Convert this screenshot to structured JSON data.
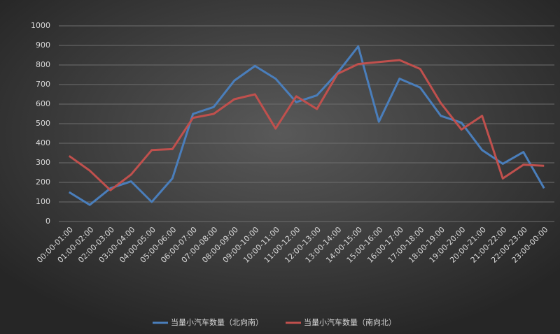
{
  "chart_data": {
    "type": "line",
    "categories": [
      "00:00-01:00",
      "01:00-02:00",
      "02:00-03:00",
      "03:00-04:00",
      "04:00-05:00",
      "05:00-06:00",
      "06:00-07:00",
      "07:00-08:00",
      "08:00-09:00",
      "09:00-10:00",
      "10:00-11:00",
      "11:00-12:00",
      "12:00-13:00",
      "13:00-14:00",
      "14:00-15:00",
      "15:00-16:00",
      "16:00-17:00",
      "17:00-18:00",
      "18:00-19:00",
      "19:00-20:00",
      "20:00-21:00",
      "21:00-22:00",
      "22:00-23:00",
      "23:00-00:00"
    ],
    "series": [
      {
        "name": "当量小汽车数量（北向南）",
        "color": "#4a7ebb",
        "values": [
          150,
          85,
          170,
          205,
          100,
          220,
          550,
          585,
          720,
          795,
          730,
          610,
          645,
          760,
          895,
          510,
          730,
          685,
          540,
          505,
          365,
          295,
          355,
          170
        ]
      },
      {
        "name": "当量小汽车数量（南向北）",
        "color": "#c0504d",
        "values": [
          335,
          260,
          160,
          240,
          365,
          370,
          530,
          550,
          625,
          650,
          475,
          640,
          575,
          755,
          805,
          815,
          825,
          780,
          605,
          470,
          540,
          220,
          290,
          285
        ]
      }
    ],
    "ylim": [
      0,
      1000
    ],
    "yticks": [
      0,
      100,
      200,
      300,
      400,
      500,
      600,
      700,
      800,
      900,
      1000
    ],
    "grid": true,
    "legend": "bottom"
  }
}
